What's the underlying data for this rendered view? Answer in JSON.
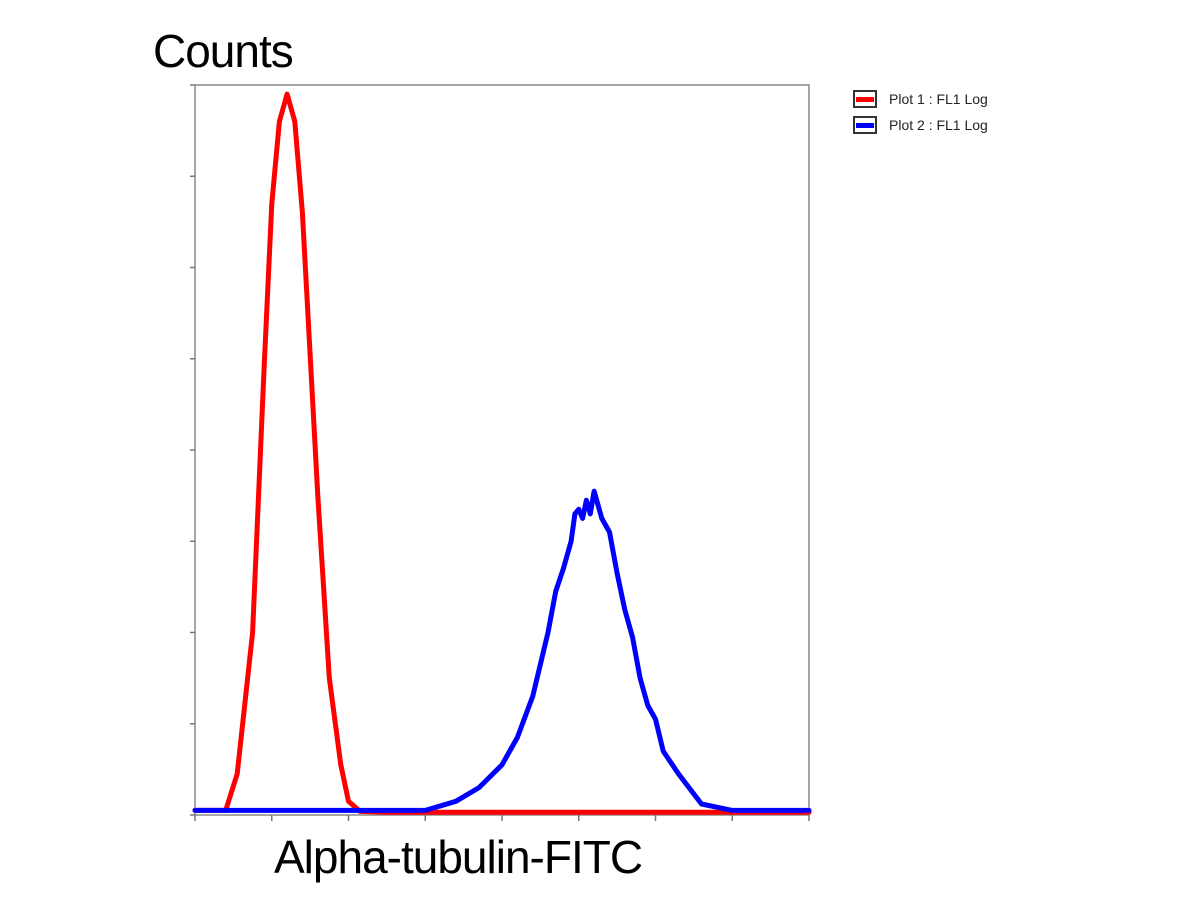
{
  "chart_data": {
    "type": "line",
    "title": "",
    "xlabel": "Alpha-tubulin-FITC",
    "ylabel": "Counts",
    "xscale": "log",
    "xlim": [
      0,
      8
    ],
    "ylim": [
      0,
      8
    ],
    "grid": false,
    "legend_position": "top-right, outside plot",
    "series": [
      {
        "name": "Plot 1 : FL1 Log",
        "color": "#ff0000",
        "x": [
          0.0,
          0.4,
          0.55,
          0.75,
          0.9,
          1.0,
          1.1,
          1.2,
          1.3,
          1.4,
          1.6,
          1.75,
          1.9,
          2.0,
          2.15,
          2.5,
          3.0,
          4.0,
          5.0,
          6.0,
          7.0,
          8.0
        ],
        "y": [
          0.05,
          0.05,
          0.45,
          2.0,
          4.9,
          6.7,
          7.6,
          7.9,
          7.6,
          6.6,
          3.5,
          1.5,
          0.55,
          0.15,
          0.04,
          0.03,
          0.03,
          0.03,
          0.03,
          0.03,
          0.03,
          0.03
        ]
      },
      {
        "name": "Plot 2 : FL1 Log",
        "color": "#0000ff",
        "x": [
          0.0,
          1.0,
          2.0,
          3.0,
          3.4,
          3.7,
          4.0,
          4.2,
          4.4,
          4.6,
          4.7,
          4.8,
          4.9,
          4.95,
          5.0,
          5.05,
          5.1,
          5.15,
          5.2,
          5.3,
          5.4,
          5.5,
          5.6,
          5.7,
          5.8,
          5.9,
          6.0,
          6.1,
          6.3,
          6.6,
          7.0,
          8.0
        ],
        "y": [
          0.05,
          0.05,
          0.05,
          0.05,
          0.15,
          0.3,
          0.55,
          0.85,
          1.3,
          2.0,
          2.45,
          2.7,
          3.0,
          3.3,
          3.35,
          3.25,
          3.45,
          3.3,
          3.55,
          3.25,
          3.1,
          2.65,
          2.25,
          1.95,
          1.5,
          1.2,
          1.05,
          0.7,
          0.45,
          0.12,
          0.05,
          0.05
        ]
      }
    ]
  }
}
